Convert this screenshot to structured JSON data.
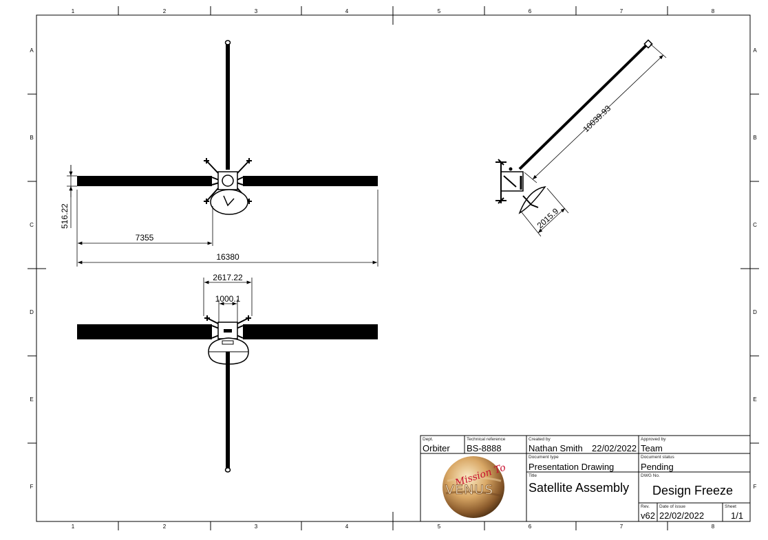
{
  "grid": {
    "columns": [
      "1",
      "2",
      "3",
      "4",
      "5",
      "6",
      "7",
      "8"
    ],
    "rows": [
      "A",
      "B",
      "C",
      "D",
      "E",
      "F"
    ]
  },
  "dimensions": {
    "height_left": "516.22",
    "offset_left": "7355",
    "span_total": "16380",
    "width_body": "2617.22",
    "width_core": "1000.1",
    "boom_length": "10039.93",
    "dish_diameter": "2015.9"
  },
  "title_block": {
    "dept_label": "Dept.",
    "dept": "Orbiter",
    "tech_ref_label": "Technical reference",
    "tech_ref": "BS-8888",
    "created_by_label": "Created by",
    "created_by": "Nathan Smith",
    "created_date": "22/02/2022",
    "approved_by_label": "Approved by",
    "approved_by": "Team",
    "doc_type_label": "Document type",
    "doc_type": "Presentation Drawing",
    "doc_status_label": "Document status",
    "doc_status": "Pending",
    "title_label": "Title",
    "title": "Satellite Assembly",
    "dwg_no_label": "DWG No.",
    "dwg_no": "Design Freeze",
    "rev_label": "Rev.",
    "rev": "v62",
    "issue_date_label": "Date of issue",
    "issue_date": "22/02/2022",
    "sheet_label": "Sheet",
    "sheet": "1/1",
    "logo_script": "Mission To",
    "logo_word": "VENUS"
  },
  "colors": {
    "ink": "#000000",
    "paper": "#ffffff",
    "logo_red": "#c8102e",
    "planet_light": "#f3dcb0",
    "planet_dark": "#8a5a2b"
  }
}
